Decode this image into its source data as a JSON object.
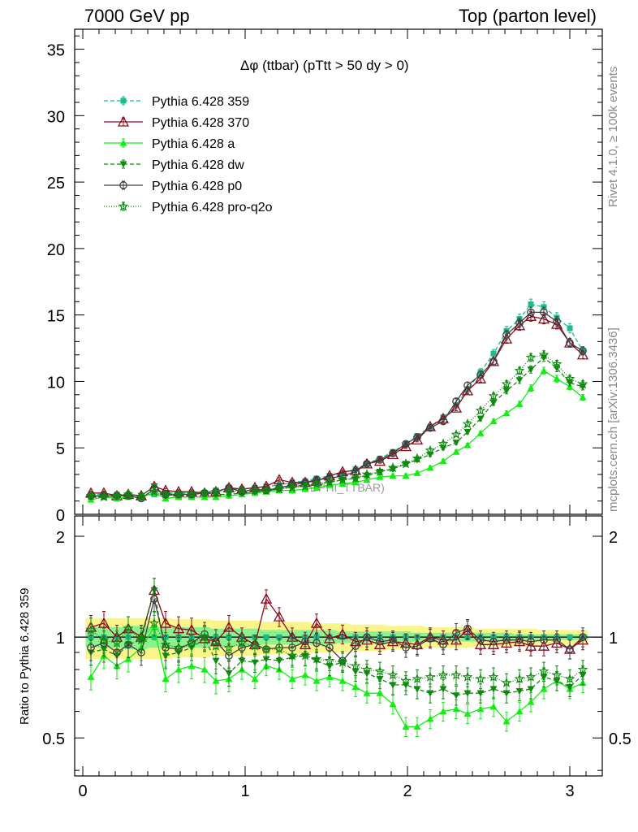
{
  "header": {
    "left": "7000 GeV pp",
    "right": "Top (parton level)"
  },
  "side_labels": {
    "rivet": "Rivet 4.1.0, ≥ 100k events",
    "mcplots": "mcplots.cern.ch [arXiv:1306.3436]"
  },
  "watermark": "DPHI_TTBAR)",
  "chart_data": [
    {
      "type": "line",
      "panel": "main",
      "title": "Δφ (ttbar) (pTtt > 50 dy > 0)",
      "xlabel": "",
      "ylabel": "",
      "xlim": [
        -0.05,
        3.2
      ],
      "ylim": [
        0,
        36.5
      ],
      "yticks": [
        0,
        5,
        10,
        15,
        20,
        25,
        30,
        35
      ],
      "xticks": [
        0,
        1,
        2,
        3
      ],
      "legend_position": "top-left",
      "x": [
        0.05,
        0.13,
        0.21,
        0.28,
        0.36,
        0.44,
        0.51,
        0.59,
        0.67,
        0.75,
        0.82,
        0.9,
        0.98,
        1.06,
        1.13,
        1.21,
        1.29,
        1.37,
        1.44,
        1.52,
        1.6,
        1.68,
        1.75,
        1.83,
        1.91,
        1.99,
        2.06,
        2.14,
        2.22,
        2.3,
        2.37,
        2.45,
        2.53,
        2.61,
        2.69,
        2.76,
        2.84,
        2.92,
        3.0,
        3.08
      ],
      "series": [
        {
          "name": "Pythia 6.428 359",
          "color": "#1abc8c",
          "dash": "5,3",
          "marker": "square",
          "values": [
            1.5,
            1.5,
            1.5,
            1.5,
            1.4,
            1.5,
            1.6,
            1.6,
            1.6,
            1.6,
            1.8,
            1.9,
            1.9,
            2.0,
            2.1,
            2.2,
            2.4,
            2.5,
            2.7,
            2.9,
            3.1,
            3.4,
            3.8,
            4.2,
            4.7,
            5.3,
            5.9,
            6.6,
            7.3,
            8.2,
            9.4,
            10.7,
            12.1,
            13.8,
            14.7,
            15.8,
            15.6,
            14.8,
            14.0,
            12.3
          ]
        },
        {
          "name": "Pythia 6.428 370",
          "color": "#8b0a1e",
          "dash": "",
          "marker": "triangle-open",
          "values": [
            1.6,
            1.6,
            1.4,
            1.5,
            1.4,
            2.1,
            1.8,
            1.7,
            1.7,
            1.6,
            1.7,
            2.0,
            1.9,
            2.0,
            2.1,
            2.6,
            2.4,
            2.4,
            2.5,
            2.9,
            3.2,
            3.3,
            3.8,
            4.0,
            4.5,
            5.1,
            5.6,
            6.6,
            7.2,
            8.0,
            9.3,
            10.2,
            11.5,
            13.2,
            14.2,
            14.9,
            14.7,
            14.3,
            12.9,
            12.0
          ]
        },
        {
          "name": "Pythia 6.428 a",
          "color": "#11ee11",
          "dash": "",
          "marker": "triangle",
          "values": [
            1.1,
            1.3,
            1.2,
            1.3,
            1.3,
            1.6,
            1.2,
            1.3,
            1.3,
            1.3,
            1.3,
            1.4,
            1.5,
            1.6,
            1.7,
            1.8,
            1.8,
            1.9,
            2.0,
            2.2,
            2.3,
            2.4,
            2.6,
            2.8,
            2.9,
            2.9,
            3.1,
            3.5,
            4.0,
            4.7,
            5.2,
            6.1,
            7.0,
            7.6,
            8.3,
            9.5,
            10.8,
            10.2,
            9.6,
            8.8
          ]
        },
        {
          "name": "Pythia 6.428 dw",
          "color": "#0f8a0f",
          "dash": "5,3",
          "marker": "triangle-down",
          "values": [
            1.3,
            1.4,
            1.3,
            1.4,
            1.4,
            2.1,
            1.4,
            1.5,
            1.5,
            1.6,
            1.5,
            1.5,
            1.6,
            1.7,
            1.8,
            1.9,
            2.1,
            2.2,
            2.3,
            2.4,
            2.6,
            2.7,
            2.9,
            3.2,
            3.4,
            3.8,
            4.1,
            4.5,
            5.0,
            5.4,
            6.2,
            7.2,
            8.4,
            9.3,
            10.1,
            10.9,
            11.8,
            11.0,
            9.9,
            9.6
          ]
        },
        {
          "name": "Pythia 6.428 p0",
          "color": "#404040",
          "dash": "",
          "marker": "circle-open",
          "values": [
            1.4,
            1.4,
            1.4,
            1.4,
            1.2,
            1.9,
            1.5,
            1.5,
            1.5,
            1.6,
            1.7,
            2.0,
            1.7,
            1.9,
            1.8,
            2.0,
            2.2,
            2.4,
            2.6,
            2.7,
            2.9,
            3.2,
            3.8,
            4.1,
            4.6,
            5.3,
            5.8,
            6.5,
            7.0,
            8.5,
            9.7,
            10.5,
            11.5,
            13.5,
            14.4,
            15.2,
            15.2,
            14.5,
            12.9,
            12.3
          ]
        },
        {
          "name": "Pythia 6.428 pro-q2o",
          "color": "#0f8a0f",
          "dash": "1,2",
          "marker": "star",
          "values": [
            1.4,
            1.3,
            1.4,
            1.5,
            1.3,
            1.7,
            1.5,
            1.5,
            1.5,
            1.6,
            1.7,
            1.7,
            1.8,
            1.8,
            1.8,
            1.9,
            2.0,
            2.1,
            2.3,
            2.4,
            2.6,
            2.7,
            3.0,
            3.2,
            3.5,
            3.8,
            4.2,
            4.8,
            5.3,
            6.0,
            6.8,
            7.8,
            8.9,
            9.8,
            10.8,
            11.8,
            12.0,
            11.3,
            10.2,
            9.8
          ]
        }
      ]
    },
    {
      "type": "line",
      "panel": "ratio",
      "title": "",
      "xlabel": "",
      "ylabel": "Ratio to Pythia 6.428 359",
      "ylim": [
        0.385,
        2.3
      ],
      "yticks": [
        0.5,
        1,
        2
      ],
      "xticks": [
        0,
        1,
        2,
        3
      ],
      "band_inner": [
        0.93,
        0.93,
        0.93,
        0.92,
        0.92,
        0.93,
        0.93,
        0.93,
        0.93,
        0.93,
        0.94,
        0.94,
        0.94,
        0.94,
        0.95,
        0.95,
        0.95,
        0.95,
        0.95,
        0.95,
        0.96,
        0.96,
        0.96,
        0.96,
        0.96,
        0.96,
        0.97,
        0.97,
        0.97,
        0.97,
        0.97,
        0.97,
        0.97,
        0.97,
        0.98,
        0.98,
        0.98,
        0.98,
        0.98,
        0.98
      ],
      "band_outer": [
        0.86,
        0.86,
        0.86,
        0.86,
        0.86,
        0.86,
        0.86,
        0.87,
        0.87,
        0.87,
        0.88,
        0.88,
        0.88,
        0.88,
        0.89,
        0.89,
        0.89,
        0.89,
        0.9,
        0.9,
        0.9,
        0.91,
        0.91,
        0.91,
        0.92,
        0.92,
        0.92,
        0.93,
        0.93,
        0.93,
        0.93,
        0.94,
        0.94,
        0.94,
        0.94,
        0.94,
        0.95,
        0.95,
        0.95,
        0.95
      ],
      "series": [
        {
          "name": "Pythia 6.428 370",
          "values": [
            1.07,
            1.1,
            1.0,
            1.06,
            1.0,
            1.38,
            1.1,
            1.06,
            1.05,
            0.99,
            0.97,
            1.07,
            1.0,
            0.95,
            1.3,
            1.15,
            1.0,
            0.95,
            1.1,
            0.99,
            1.02,
            0.97,
            0.98,
            0.95,
            0.97,
            0.96,
            0.95,
            1.0,
            0.98,
            0.98,
            1.05,
            0.95,
            0.95,
            0.96,
            0.97,
            0.94,
            0.94,
            0.96,
            0.92,
            0.98
          ]
        },
        {
          "name": "Pythia 6.428 a",
          "values": [
            0.76,
            0.88,
            0.82,
            0.86,
            0.93,
            1.07,
            0.75,
            0.8,
            0.82,
            0.8,
            0.74,
            0.75,
            0.8,
            0.75,
            0.82,
            0.8,
            0.75,
            0.77,
            0.74,
            0.76,
            0.74,
            0.71,
            0.68,
            0.68,
            0.63,
            0.54,
            0.54,
            0.57,
            0.6,
            0.61,
            0.59,
            0.61,
            0.62,
            0.56,
            0.6,
            0.64,
            0.7,
            0.74,
            0.7,
            0.73
          ]
        },
        {
          "name": "Pythia 6.428 dw",
          "values": [
            0.9,
            0.92,
            0.88,
            0.95,
            0.98,
            1.38,
            0.88,
            0.9,
            0.93,
            0.99,
            0.85,
            0.78,
            0.85,
            0.84,
            0.86,
            0.85,
            0.87,
            0.88,
            0.85,
            0.82,
            0.84,
            0.79,
            0.78,
            0.75,
            0.72,
            0.72,
            0.7,
            0.68,
            0.7,
            0.67,
            0.68,
            0.68,
            0.7,
            0.68,
            0.69,
            0.7,
            0.76,
            0.74,
            0.71,
            0.77
          ]
        },
        {
          "name": "Pythia 6.428 p0",
          "values": [
            0.93,
            0.96,
            0.9,
            0.95,
            0.9,
            1.3,
            0.93,
            0.92,
            0.96,
            1.02,
            0.97,
            0.88,
            0.93,
            0.95,
            0.92,
            0.93,
            0.93,
            0.97,
            0.96,
            0.93,
            0.85,
            0.94,
            1.0,
            0.97,
            0.98,
            0.93,
            0.94,
            0.99,
            0.95,
            1.03,
            1.06,
            0.98,
            0.97,
            0.98,
            0.98,
            0.97,
            0.98,
            0.98,
            0.92,
            1.0
          ]
        },
        {
          "name": "Pythia 6.428 pro-q2o",
          "values": [
            1.05,
            0.98,
            0.96,
            1.06,
            0.98,
            1.1,
            0.95,
            0.93,
            0.96,
            1.0,
            0.94,
            0.93,
            0.96,
            0.94,
            0.92,
            0.92,
            0.88,
            0.88,
            0.86,
            0.85,
            0.84,
            0.82,
            0.8,
            0.79,
            0.77,
            0.74,
            0.75,
            0.76,
            0.77,
            0.77,
            0.76,
            0.75,
            0.76,
            0.73,
            0.75,
            0.76,
            0.79,
            0.77,
            0.75,
            0.8
          ]
        }
      ]
    }
  ]
}
